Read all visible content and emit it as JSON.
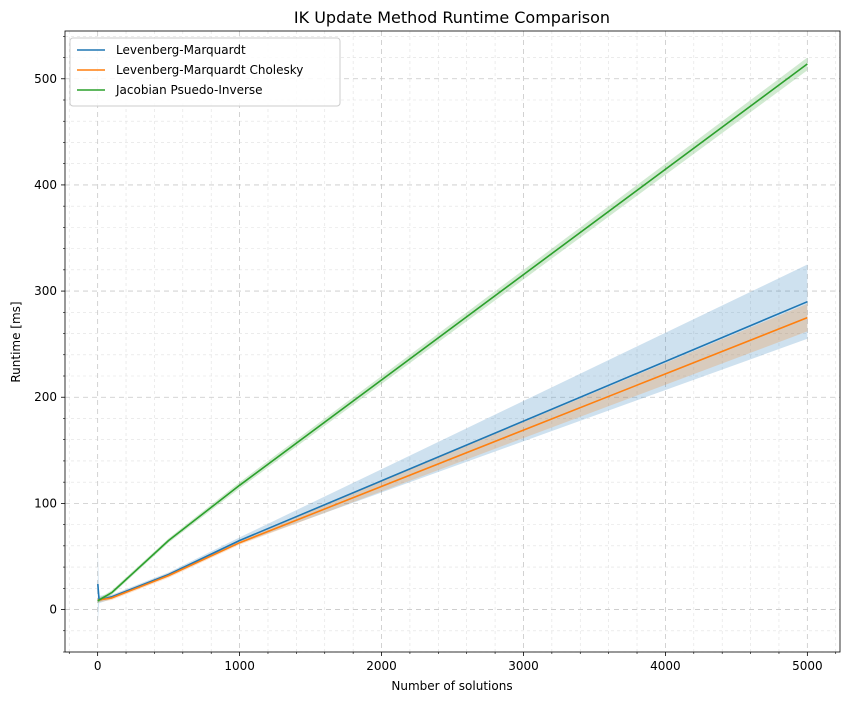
{
  "chart_data": {
    "type": "line",
    "title": "IK Update Method Runtime Comparison",
    "xlabel": "Number of solutions",
    "ylabel": "Runtime [ms]",
    "xlim": [
      -230,
      5230
    ],
    "ylim": [
      -40,
      545
    ],
    "x_ticks": [
      0,
      1000,
      2000,
      3000,
      4000,
      5000
    ],
    "y_ticks": [
      0,
      100,
      200,
      300,
      400,
      500
    ],
    "x_minor_step": 200,
    "y_minor_step": 20,
    "grid": true,
    "legend_position": "top-left",
    "series": [
      {
        "name": "Levenberg-Marquardt",
        "color": "#1f77b4",
        "x": [
          1,
          10,
          100,
          500,
          1000,
          5000
        ],
        "y": [
          24,
          9,
          12,
          33,
          65,
          290
        ],
        "lower": [
          -12,
          6,
          10,
          31,
          62,
          255
        ],
        "upper": [
          58,
          13,
          14,
          35,
          68,
          325
        ]
      },
      {
        "name": "Levenberg-Marquardt Cholesky",
        "color": "#ff7f0e",
        "x": [
          1,
          10,
          100,
          500,
          1000,
          5000
        ],
        "y": [
          9,
          9,
          11,
          32,
          63,
          275
        ],
        "lower": [
          6,
          7,
          9,
          30,
          61,
          262
        ],
        "upper": [
          12,
          11,
          13,
          34,
          65,
          288
        ]
      },
      {
        "name": "Jacobian Psuedo-Inverse",
        "color": "#2ca02c",
        "x": [
          1,
          10,
          100,
          500,
          1000,
          5000
        ],
        "y": [
          8,
          9,
          16,
          65,
          117,
          514
        ],
        "lower": [
          6,
          7,
          14,
          63,
          114,
          508
        ],
        "upper": [
          10,
          11,
          18,
          67,
          120,
          520
        ]
      }
    ]
  }
}
